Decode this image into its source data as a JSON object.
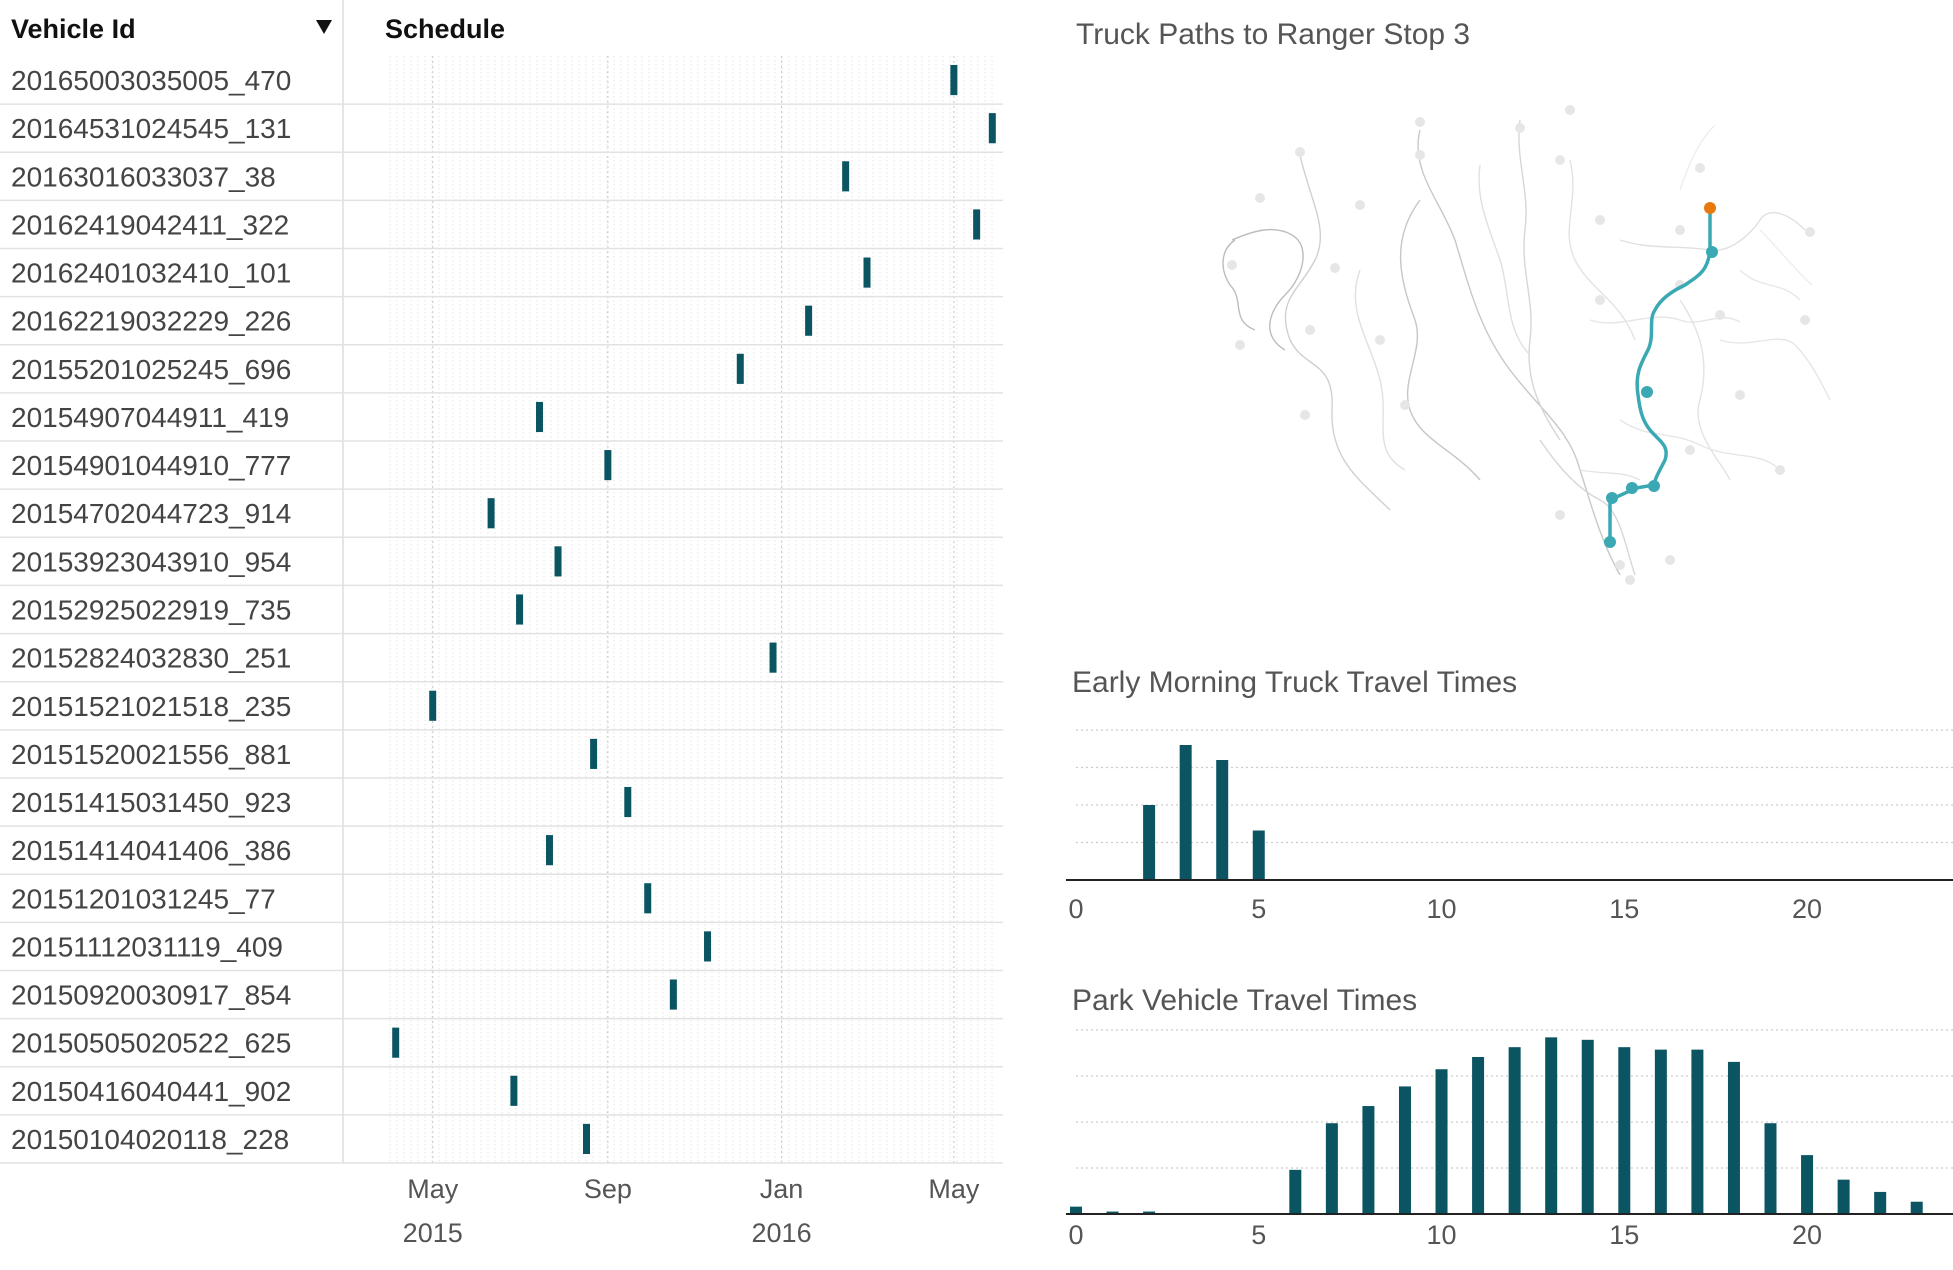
{
  "table": {
    "col_vehicle": "Vehicle Id",
    "col_schedule": "Schedule",
    "sort_icon": "triangle-down-icon"
  },
  "schedule": {
    "type": "gantt",
    "bar_color": "#0b5563",
    "x_ticks": [
      {
        "date": "2015-05-01",
        "label": "May",
        "year": "2015"
      },
      {
        "date": "2015-09-01",
        "label": "Sep",
        "year": ""
      },
      {
        "date": "2016-01-01",
        "label": "Jan",
        "year": "2016"
      },
      {
        "date": "2016-05-01",
        "label": "May",
        "year": ""
      }
    ],
    "x_range": [
      "2015-04-01",
      "2016-06-01"
    ],
    "rows": [
      {
        "id": "20165003035005_470",
        "date": "2016-05-01"
      },
      {
        "id": "20164531024545_131",
        "date": "2016-05-28"
      },
      {
        "id": "20163016033037_38",
        "date": "2016-02-15"
      },
      {
        "id": "20162419042411_322",
        "date": "2016-05-17"
      },
      {
        "id": "20162401032410_101",
        "date": "2016-03-01"
      },
      {
        "id": "20162219032229_226",
        "date": "2016-01-20"
      },
      {
        "id": "20155201025245_696",
        "date": "2015-12-03"
      },
      {
        "id": "20154907044911_419",
        "date": "2015-07-15"
      },
      {
        "id": "20154901044910_777",
        "date": "2015-09-01"
      },
      {
        "id": "20154702044723_914",
        "date": "2015-06-11"
      },
      {
        "id": "20153923043910_954",
        "date": "2015-07-28"
      },
      {
        "id": "20152925022919_735",
        "date": "2015-07-01"
      },
      {
        "id": "20152824032830_251",
        "date": "2015-12-26"
      },
      {
        "id": "20151521021518_235",
        "date": "2015-05-01"
      },
      {
        "id": "20151520021556_881",
        "date": "2015-08-22"
      },
      {
        "id": "20151415031450_923",
        "date": "2015-09-15"
      },
      {
        "id": "20151414041406_386",
        "date": "2015-07-22"
      },
      {
        "id": "20151201031245_77",
        "date": "2015-09-29"
      },
      {
        "id": "20151112031119_409",
        "date": "2015-11-10"
      },
      {
        "id": "20150920030917_854",
        "date": "2015-10-17"
      },
      {
        "id": "20150505020522_625",
        "date": "2015-04-05"
      },
      {
        "id": "20150416040441_902",
        "date": "2015-06-27"
      },
      {
        "id": "20150104020118_228",
        "date": "2015-08-17"
      }
    ]
  },
  "map": {
    "title": "Truck Paths to Ranger Stop 3",
    "path_color": "#3aa9b3",
    "end_color": "#e8790c",
    "background_color": "#cccccc"
  },
  "chart_data": [
    {
      "type": "bar",
      "title": "Early Morning Truck Travel Times",
      "color": "#0b5563",
      "x": [
        2,
        3,
        4,
        5
      ],
      "values": [
        5,
        9,
        8,
        3.3
      ],
      "xlim": [
        0,
        23.5
      ],
      "ylim": [
        0,
        10
      ],
      "xticks": [
        0,
        5,
        10,
        15,
        20
      ],
      "grid": true
    },
    {
      "type": "bar",
      "title": "Park Vehicle Travel Times",
      "color": "#0b5563",
      "x": [
        0,
        1,
        2,
        6,
        7,
        8,
        9,
        10,
        11,
        12,
        13,
        14,
        15,
        16,
        17,
        18,
        19,
        20,
        21,
        22,
        23
      ],
      "values": [
        0.3,
        0.1,
        0.1,
        1.8,
        3.7,
        4.4,
        5.2,
        5.9,
        6.4,
        6.8,
        7.2,
        7.1,
        6.8,
        6.7,
        6.7,
        6.2,
        3.7,
        2.4,
        1.4,
        0.9,
        0.5
      ],
      "xlim": [
        0,
        23.5
      ],
      "ylim": [
        0,
        7.5
      ],
      "xticks": [
        0,
        5,
        10,
        15,
        20
      ],
      "grid": true
    }
  ]
}
